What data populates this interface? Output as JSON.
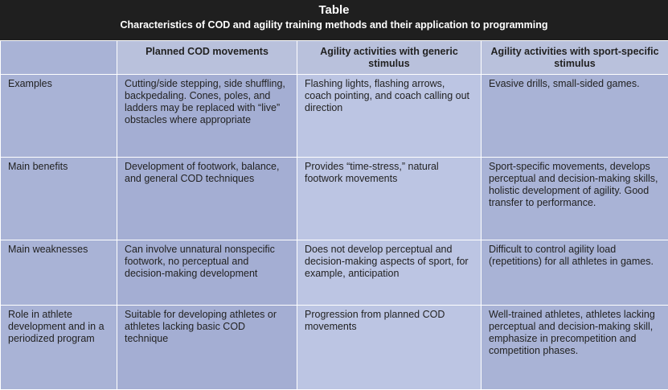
{
  "caption": {
    "label": "Table",
    "title": "Characteristics of COD and agility training methods and their application to programming"
  },
  "headers": [
    "",
    "Planned COD movements",
    "Agility activities with generic stimulus",
    "Agility activities with sport-specific stimulus"
  ],
  "rows": [
    {
      "label": "Examples",
      "cells": [
        "Cutting/side stepping, side shuffling, backpedaling. Cones, poles, and ladders may be replaced with “live” obstacles where appropriate",
        "Flashing lights, flashing arrows, coach pointing, and coach calling out direction",
        "Evasive drills, small-sided games."
      ]
    },
    {
      "label": "Main benefits",
      "cells": [
        "Development of footwork, balance, and general COD techniques",
        "Provides “time-stress,” natural footwork movements",
        "Sport-specific movements, develops perceptual and decision-making skills, holistic development of agility. Good transfer to performance."
      ]
    },
    {
      "label": "Main weaknesses",
      "cells": [
        "Can involve unnatural nonspecific footwork, no perceptual and decision-making development",
        "Does not develop perceptual and decision-making aspects of sport, for example, anticipation",
        "Difficult to control agility load (repetitions) for all athletes in games."
      ]
    },
    {
      "label": "Role in athlete development and in a periodized program",
      "cells": [
        "Suitable for developing athletes or athletes lacking basic COD technique",
        "Progression from planned COD movements",
        "Well-trained athletes, athletes lacking perceptual and decision-making skill, emphasize in precompetition and competition phases."
      ]
    }
  ]
}
